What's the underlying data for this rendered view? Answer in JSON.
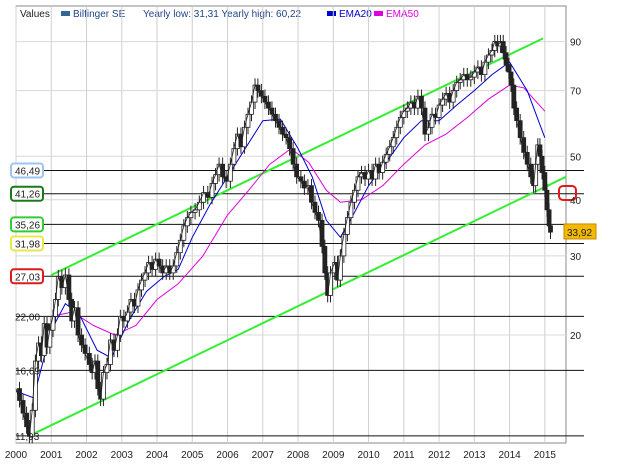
{
  "chart_data": {
    "type": "candlestick-line",
    "legend": {
      "values_label": "Values",
      "series_label": "Bilfinger SE",
      "stats_label": "Yearly low: 31,31 Yearly high: 60,22",
      "ema20_label": "EMA20",
      "ema50_label": "EMA50"
    },
    "x_ticks": [
      "2000",
      "2001",
      "2002",
      "2003",
      "2004",
      "2005",
      "2006",
      "2007",
      "2008",
      "2009",
      "2010",
      "2011",
      "2012",
      "2013",
      "2014",
      "2015"
    ],
    "y_ticks": [
      20,
      30,
      40,
      50,
      70,
      90
    ],
    "y_scale": "log",
    "ylim": [
      11.5,
      108
    ],
    "xlim": [
      2000.0,
      2015.6
    ],
    "levels": [
      {
        "value": 46.49,
        "label": "46,49",
        "box": "#9ec3ef"
      },
      {
        "value": 41.26,
        "label": "41,26",
        "box": "#1a7a1a"
      },
      {
        "value": 35.26,
        "label": "35,26",
        "box": "#33cc33"
      },
      {
        "value": 31.98,
        "label": "31,98",
        "box": "#e8e84a"
      },
      {
        "value": 27.03,
        "label": "27,03",
        "box": "#e01a1a"
      },
      {
        "value": 22.0,
        "label": "22,00",
        "box": null
      },
      {
        "value": 16.69,
        "label": "16,69",
        "box": null
      },
      {
        "value": 11.93,
        "label": "11,93",
        "box": null
      }
    ],
    "last_price": {
      "value": 33.92,
      "label": "33,92"
    },
    "channel": [
      {
        "x1": 2000.35,
        "y1": 11.9,
        "x2": 2015.6,
        "y2": 45.0
      },
      {
        "x1": 2001.0,
        "y1": 27.2,
        "x2": 2014.95,
        "y2": 91.5
      }
    ],
    "close": [
      [
        2000.0,
        15.2
      ],
      [
        2000.1,
        14.3
      ],
      [
        2000.2,
        13.4
      ],
      [
        2000.3,
        12.5
      ],
      [
        2000.38,
        11.9
      ],
      [
        2000.46,
        13.6
      ],
      [
        2000.55,
        17.5
      ],
      [
        2000.64,
        19.2
      ],
      [
        2000.72,
        18.0
      ],
      [
        2000.8,
        21.2
      ],
      [
        2000.88,
        18.8
      ],
      [
        2000.96,
        20.5
      ],
      [
        2001.05,
        22.0
      ],
      [
        2001.12,
        24.0
      ],
      [
        2001.2,
        27.0
      ],
      [
        2001.3,
        25.5
      ],
      [
        2001.4,
        27.2
      ],
      [
        2001.5,
        24.0
      ],
      [
        2001.58,
        21.5
      ],
      [
        2001.66,
        23.0
      ],
      [
        2001.76,
        20.0
      ],
      [
        2001.86,
        19.0
      ],
      [
        2001.96,
        18.2
      ],
      [
        2002.08,
        17.2
      ],
      [
        2002.16,
        16.5
      ],
      [
        2002.24,
        17.5
      ],
      [
        2002.32,
        15.2
      ],
      [
        2002.4,
        14.4
      ],
      [
        2002.48,
        16.5
      ],
      [
        2002.58,
        17.2
      ],
      [
        2002.68,
        19.5
      ],
      [
        2002.78,
        18.5
      ],
      [
        2002.88,
        20.0
      ],
      [
        2002.96,
        22.0
      ],
      [
        2003.06,
        21.5
      ],
      [
        2003.16,
        22.5
      ],
      [
        2003.26,
        24.0
      ],
      [
        2003.36,
        23.2
      ],
      [
        2003.46,
        25.2
      ],
      [
        2003.56,
        26.5
      ],
      [
        2003.66,
        27.5
      ],
      [
        2003.76,
        29.0
      ],
      [
        2003.86,
        28.0
      ],
      [
        2003.96,
        29.5
      ],
      [
        2004.06,
        28.5
      ],
      [
        2004.16,
        27.5
      ],
      [
        2004.26,
        28.5
      ],
      [
        2004.36,
        27.5
      ],
      [
        2004.46,
        28.5
      ],
      [
        2004.56,
        30.5
      ],
      [
        2004.66,
        32.5
      ],
      [
        2004.76,
        35.0
      ],
      [
        2004.86,
        36.5
      ],
      [
        2004.96,
        37.5
      ],
      [
        2005.08,
        38.0
      ],
      [
        2005.2,
        39.5
      ],
      [
        2005.32,
        41.5
      ],
      [
        2005.44,
        40.5
      ],
      [
        2005.56,
        43.5
      ],
      [
        2005.66,
        45.5
      ],
      [
        2005.76,
        48.0
      ],
      [
        2005.86,
        45.0
      ],
      [
        2005.96,
        44.0
      ],
      [
        2006.08,
        48.0
      ],
      [
        2006.18,
        52.0
      ],
      [
        2006.28,
        56.0
      ],
      [
        2006.38,
        52.5
      ],
      [
        2006.48,
        58.0
      ],
      [
        2006.58,
        62.0
      ],
      [
        2006.68,
        66.0
      ],
      [
        2006.78,
        72.0
      ],
      [
        2006.86,
        70.0
      ],
      [
        2006.96,
        68.0
      ],
      [
        2007.06,
        66.0
      ],
      [
        2007.16,
        64.0
      ],
      [
        2007.26,
        62.0
      ],
      [
        2007.36,
        60.0
      ],
      [
        2007.46,
        58.0
      ],
      [
        2007.56,
        56.0
      ],
      [
        2007.66,
        55.0
      ],
      [
        2007.76,
        52.0
      ],
      [
        2007.86,
        48.0
      ],
      [
        2007.96,
        45.0
      ],
      [
        2008.08,
        44.0
      ],
      [
        2008.18,
        42.5
      ],
      [
        2008.28,
        43.0
      ],
      [
        2008.38,
        39.5
      ],
      [
        2008.48,
        37.5
      ],
      [
        2008.58,
        36.0
      ],
      [
        2008.68,
        31.5
      ],
      [
        2008.76,
        27.5
      ],
      [
        2008.84,
        24.5
      ],
      [
        2008.92,
        27.5
      ],
      [
        2009.04,
        29.0
      ],
      [
        2009.12,
        26.5
      ],
      [
        2009.2,
        30.0
      ],
      [
        2009.3,
        33.5
      ],
      [
        2009.4,
        36.5
      ],
      [
        2009.5,
        39.5
      ],
      [
        2009.6,
        42.0
      ],
      [
        2009.7,
        45.0
      ],
      [
        2009.8,
        46.0
      ],
      [
        2009.9,
        44.5
      ],
      [
        2010.0,
        46.5
      ],
      [
        2010.1,
        44.5
      ],
      [
        2010.2,
        48.0
      ],
      [
        2010.3,
        46.0
      ],
      [
        2010.4,
        48.5
      ],
      [
        2010.5,
        50.5
      ],
      [
        2010.6,
        52.5
      ],
      [
        2010.7,
        55.0
      ],
      [
        2010.8,
        58.0
      ],
      [
        2010.9,
        61.0
      ],
      [
        2011.0,
        63.0
      ],
      [
        2011.1,
        64.0
      ],
      [
        2011.2,
        66.0
      ],
      [
        2011.3,
        64.0
      ],
      [
        2011.4,
        68.0
      ],
      [
        2011.5,
        64.0
      ],
      [
        2011.6,
        56.0
      ],
      [
        2011.7,
        58.0
      ],
      [
        2011.8,
        62.0
      ],
      [
        2011.9,
        61.0
      ],
      [
        2012.0,
        65.0
      ],
      [
        2012.1,
        67.0
      ],
      [
        2012.2,
        69.0
      ],
      [
        2012.3,
        66.0
      ],
      [
        2012.4,
        70.0
      ],
      [
        2012.5,
        73.0
      ],
      [
        2012.6,
        74.0
      ],
      [
        2012.7,
        76.0
      ],
      [
        2012.8,
        74.0
      ],
      [
        2012.9,
        75.0
      ],
      [
        2013.0,
        77.0
      ],
      [
        2013.1,
        79.0
      ],
      [
        2013.2,
        76.0
      ],
      [
        2013.3,
        81.0
      ],
      [
        2013.4,
        84.0
      ],
      [
        2013.5,
        86.0
      ],
      [
        2013.58,
        90.0
      ],
      [
        2013.66,
        88.0
      ],
      [
        2013.74,
        90.0
      ],
      [
        2013.82,
        85.0
      ],
      [
        2013.9,
        80.0
      ],
      [
        2013.98,
        77.0
      ],
      [
        2014.04,
        72.0
      ],
      [
        2014.12,
        64.0
      ],
      [
        2014.2,
        60.0
      ],
      [
        2014.3,
        55.0
      ],
      [
        2014.4,
        51.0
      ],
      [
        2014.5,
        48.0
      ],
      [
        2014.6,
        45.0
      ],
      [
        2014.68,
        43.0
      ],
      [
        2014.74,
        48.0
      ],
      [
        2014.8,
        53.0
      ],
      [
        2014.86,
        50.0
      ],
      [
        2014.92,
        46.0
      ],
      [
        2015.0,
        42.0
      ],
      [
        2015.06,
        38.0
      ],
      [
        2015.12,
        35.0
      ],
      [
        2015.16,
        33.9
      ]
    ],
    "ema20": [
      [
        2000.0,
        15.0
      ],
      [
        2000.5,
        14.5
      ],
      [
        2001.0,
        20.5
      ],
      [
        2001.4,
        23.5
      ],
      [
        2001.8,
        22.2
      ],
      [
        2002.3,
        18.5
      ],
      [
        2002.7,
        17.8
      ],
      [
        2003.2,
        21.5
      ],
      [
        2003.7,
        25.0
      ],
      [
        2004.2,
        27.0
      ],
      [
        2004.6,
        28.0
      ],
      [
        2005.0,
        33.0
      ],
      [
        2005.5,
        39.0
      ],
      [
        2006.0,
        45.0
      ],
      [
        2006.5,
        52.0
      ],
      [
        2007.0,
        60.0
      ],
      [
        2007.5,
        60.5
      ],
      [
        2008.0,
        52.0
      ],
      [
        2008.4,
        45.0
      ],
      [
        2008.8,
        36.0
      ],
      [
        2009.2,
        33.0
      ],
      [
        2009.6,
        37.5
      ],
      [
        2010.0,
        43.0
      ],
      [
        2010.5,
        48.5
      ],
      [
        2011.0,
        55.0
      ],
      [
        2011.5,
        60.0
      ],
      [
        2012.0,
        60.0
      ],
      [
        2012.5,
        65.0
      ],
      [
        2013.0,
        70.0
      ],
      [
        2013.5,
        76.0
      ],
      [
        2014.0,
        81.0
      ],
      [
        2014.5,
        70.0
      ],
      [
        2015.0,
        55.0
      ]
    ],
    "ema50": [
      [
        2001.0,
        22.0
      ],
      [
        2001.6,
        22.5
      ],
      [
        2002.2,
        21.0
      ],
      [
        2002.8,
        20.0
      ],
      [
        2003.4,
        21.0
      ],
      [
        2004.0,
        24.0
      ],
      [
        2004.6,
        26.0
      ],
      [
        2005.3,
        30.0
      ],
      [
        2006.0,
        37.0
      ],
      [
        2006.6,
        42.0
      ],
      [
        2007.2,
        48.0
      ],
      [
        2007.8,
        52.0
      ],
      [
        2008.3,
        48.5
      ],
      [
        2008.8,
        42.0
      ],
      [
        2009.2,
        39.5
      ],
      [
        2009.8,
        40.0
      ],
      [
        2010.4,
        43.0
      ],
      [
        2011.0,
        48.0
      ],
      [
        2011.6,
        53.0
      ],
      [
        2012.2,
        56.0
      ],
      [
        2012.8,
        61.0
      ],
      [
        2013.4,
        67.0
      ],
      [
        2014.0,
        72.0
      ],
      [
        2014.4,
        71.0
      ],
      [
        2015.0,
        63.0
      ]
    ]
  }
}
